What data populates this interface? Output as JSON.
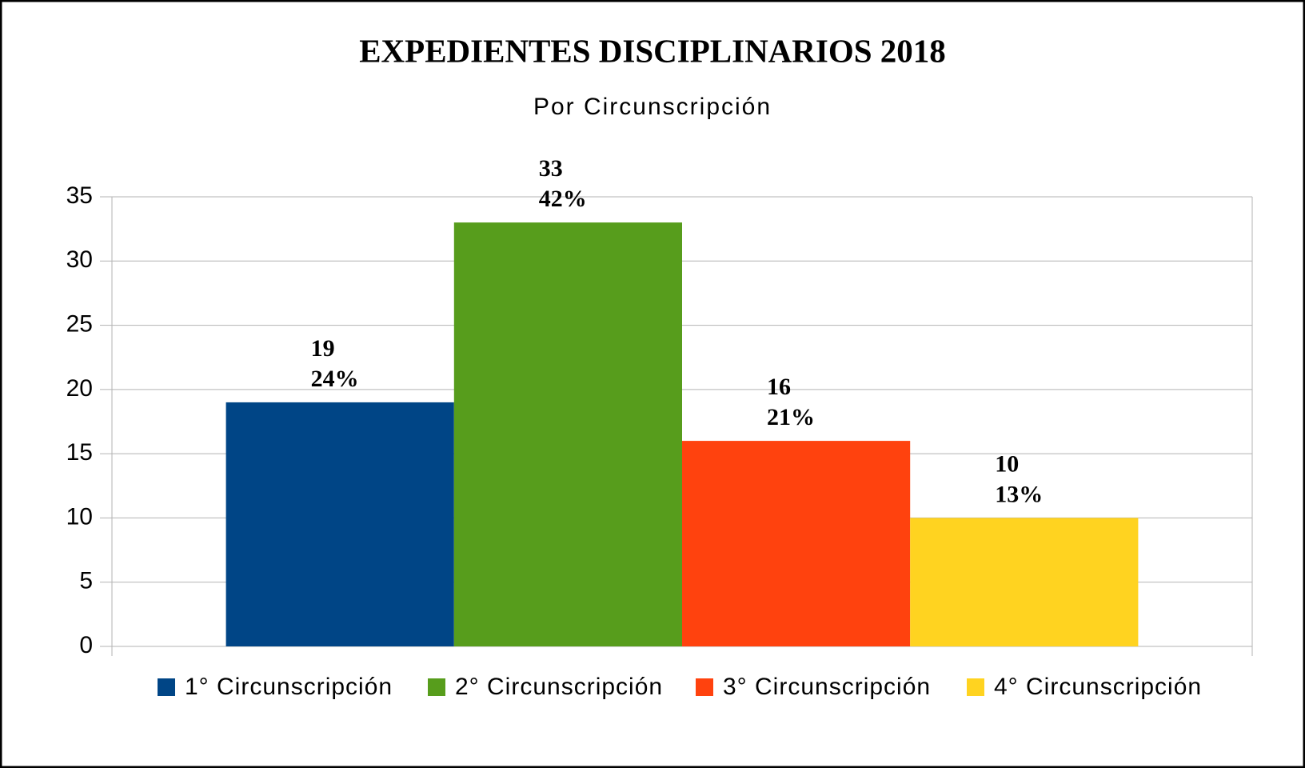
{
  "chart_data": {
    "type": "bar",
    "title": "EXPEDIENTES DISCIPLINARIOS 2018",
    "subtitle": "Por Circunscripción",
    "categories": [
      null
    ],
    "series": [
      {
        "name": "1° Circunscripción",
        "color": "#004586",
        "values": [
          19
        ],
        "percent_labels": [
          "24%"
        ]
      },
      {
        "name": "2° Circunscripción",
        "color": "#579d1c",
        "values": [
          33
        ],
        "percent_labels": [
          "42%"
        ]
      },
      {
        "name": "3° Circunscripción",
        "color": "#ff420e",
        "values": [
          16
        ],
        "percent_labels": [
          "21%"
        ]
      },
      {
        "name": "4° Circunscripción",
        "color": "#ffd320",
        "values": [
          10
        ],
        "percent_labels": [
          "13%"
        ]
      }
    ],
    "ylim": [
      0,
      35
    ],
    "yticks": [
      0,
      5,
      10,
      15,
      20,
      25,
      30,
      35
    ],
    "grid": true,
    "legend": "bottom"
  }
}
